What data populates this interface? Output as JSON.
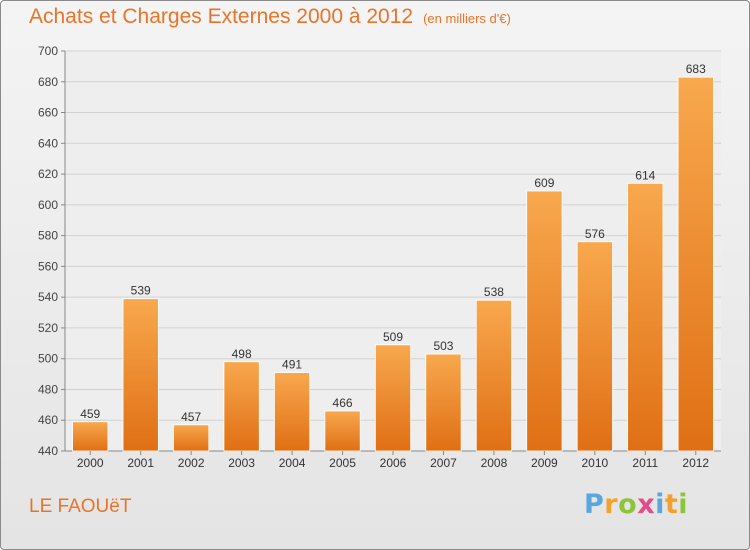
{
  "header": {
    "title": "Achats et Charges Externes 2000 à 2012",
    "subtitle": "(en milliers d'€)"
  },
  "footer": {
    "commune": "LE FAOUëT"
  },
  "logo": {
    "letters": [
      "P",
      "r",
      "o",
      "x",
      "i",
      "t",
      "i"
    ],
    "colors": [
      "#5aa6de",
      "#f2a22c",
      "#8cc43c",
      "#e44b8a",
      "#5aa6de",
      "#f2a22c",
      "#8cc43c"
    ]
  },
  "colors": {
    "bar_top": "#f8a84e",
    "bar_bottom": "#e06f14",
    "title": "#e8742a"
  },
  "chart_data": {
    "type": "bar",
    "categories": [
      "2000",
      "2001",
      "2002",
      "2003",
      "2004",
      "2005",
      "2006",
      "2007",
      "2008",
      "2009",
      "2010",
      "2011",
      "2012"
    ],
    "values": [
      459,
      539,
      457,
      498,
      491,
      466,
      509,
      503,
      538,
      609,
      576,
      614,
      683
    ],
    "data_labels": [
      "459",
      "539",
      "457",
      "498",
      "491",
      "466",
      "509",
      "503",
      "538",
      "609",
      "576",
      "614",
      "683"
    ],
    "ylim": [
      440,
      700
    ],
    "yticks": [
      440,
      460,
      480,
      500,
      520,
      540,
      560,
      580,
      600,
      620,
      640,
      660,
      680,
      700
    ],
    "grid": true,
    "legend": "none"
  }
}
